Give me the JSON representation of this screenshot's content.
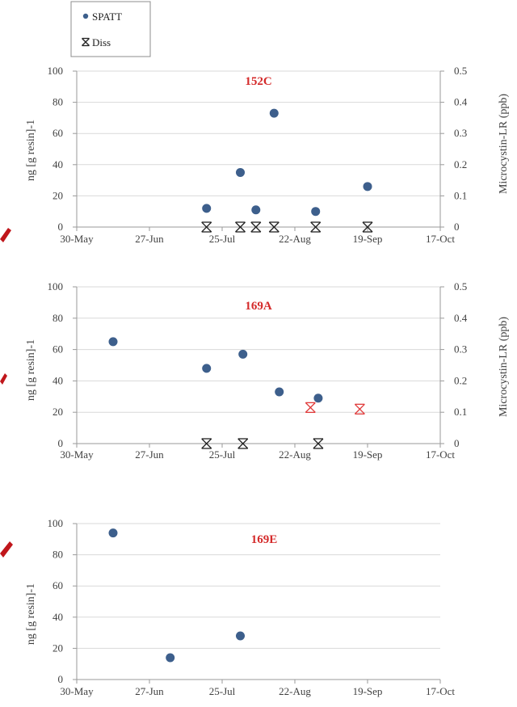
{
  "legend": {
    "spatt_label": "SPATT",
    "diss_label": "Diss"
  },
  "colors": {
    "spatt": "#3d5f8c",
    "diss": "#222222",
    "diss_highlight": "#e03a3a",
    "grid": "#d9d9d9",
    "axis": "#9a9a9a",
    "accent_arrow": "#c0161b"
  },
  "chart_data": [
    {
      "type": "scatter",
      "title": "152C",
      "ylabel_left": "ng [g resin]-1",
      "ylabel_right": "Microcystin-LR (ppb)",
      "x_ticks": [
        "30-May",
        "27-Jun",
        "25-Jul",
        "22-Aug",
        "19-Sep",
        "17-Oct"
      ],
      "xlim": [
        "2018-05-30",
        "2018-10-17"
      ],
      "ylim_left": [
        0,
        100
      ],
      "yticks_left": [
        0,
        20,
        40,
        60,
        80,
        100
      ],
      "ylim_right": [
        0,
        0.5
      ],
      "yticks_right": [
        "0",
        "0.1",
        "0.2",
        "0.3",
        "0.4",
        "0.5"
      ],
      "grid": true,
      "series": [
        {
          "name": "SPATT",
          "axis": "left",
          "points": [
            {
              "x": "2018-07-19",
              "y": 12
            },
            {
              "x": "2018-08-01",
              "y": 35
            },
            {
              "x": "2018-08-07",
              "y": 11
            },
            {
              "x": "2018-08-14",
              "y": 73
            },
            {
              "x": "2018-08-30",
              "y": 10
            },
            {
              "x": "2018-09-19",
              "y": 26
            }
          ]
        },
        {
          "name": "Diss",
          "axis": "right",
          "points": [
            {
              "x": "2018-07-19",
              "y": 0,
              "highlight": false
            },
            {
              "x": "2018-08-01",
              "y": 0,
              "highlight": false
            },
            {
              "x": "2018-08-07",
              "y": 0,
              "highlight": false
            },
            {
              "x": "2018-08-14",
              "y": 0,
              "highlight": false
            },
            {
              "x": "2018-08-30",
              "y": 0,
              "highlight": false
            },
            {
              "x": "2018-09-19",
              "y": 0,
              "highlight": false
            }
          ]
        }
      ]
    },
    {
      "type": "scatter",
      "title": "169A",
      "ylabel_left": "ng [g resin]-1",
      "ylabel_right": "Microcystin-LR (ppb)",
      "x_ticks": [
        "30-May",
        "27-Jun",
        "25-Jul",
        "22-Aug",
        "19-Sep",
        "17-Oct"
      ],
      "xlim": [
        "2018-05-30",
        "2018-10-17"
      ],
      "ylim_left": [
        0,
        100
      ],
      "yticks_left": [
        0,
        20,
        40,
        60,
        80,
        100
      ],
      "ylim_right": [
        0,
        0.5
      ],
      "yticks_right": [
        "0",
        "0.1",
        "0.2",
        "0.3",
        "0.4",
        "0.5"
      ],
      "grid": true,
      "series": [
        {
          "name": "SPATT",
          "axis": "left",
          "points": [
            {
              "x": "2018-06-13",
              "y": 65
            },
            {
              "x": "2018-07-19",
              "y": 48
            },
            {
              "x": "2018-08-02",
              "y": 57
            },
            {
              "x": "2018-08-16",
              "y": 33
            },
            {
              "x": "2018-08-31",
              "y": 29
            }
          ]
        },
        {
          "name": "Diss",
          "axis": "right",
          "points": [
            {
              "x": "2018-07-19",
              "y": 0,
              "highlight": false
            },
            {
              "x": "2018-08-02",
              "y": 0,
              "highlight": false
            },
            {
              "x": "2018-08-31",
              "y": 0,
              "highlight": false
            },
            {
              "x": "2018-08-28",
              "y": 0.115,
              "highlight": true
            },
            {
              "x": "2018-09-16",
              "y": 0.11,
              "highlight": true
            }
          ]
        }
      ]
    },
    {
      "type": "scatter",
      "title": "169E",
      "ylabel_left": "ng [g resin]-1",
      "ylabel_right": "",
      "x_ticks": [
        "30-May",
        "27-Jun",
        "25-Jul",
        "22-Aug",
        "19-Sep",
        "17-Oct"
      ],
      "xlim": [
        "2018-05-30",
        "2018-10-17"
      ],
      "ylim_left": [
        0,
        100
      ],
      "yticks_left": [
        0,
        20,
        40,
        60,
        80,
        100
      ],
      "ylim_right": null,
      "yticks_right": [],
      "grid": true,
      "series": [
        {
          "name": "SPATT",
          "axis": "left",
          "points": [
            {
              "x": "2018-06-13",
              "y": 94
            },
            {
              "x": "2018-07-05",
              "y": 14
            },
            {
              "x": "2018-08-01",
              "y": 28
            }
          ]
        }
      ]
    }
  ]
}
